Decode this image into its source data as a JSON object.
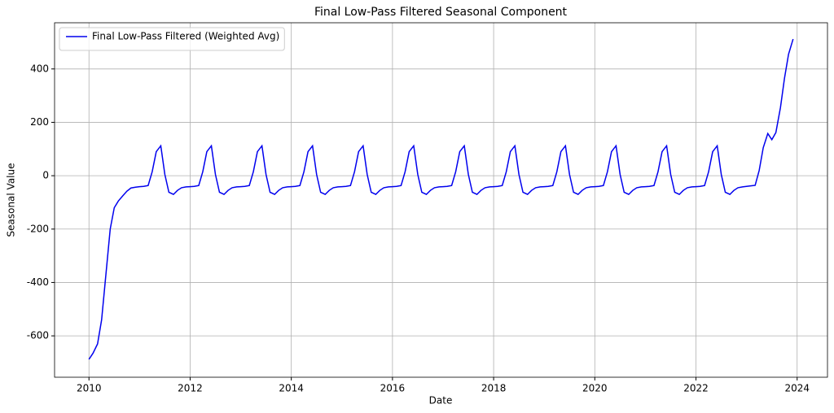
{
  "chart_data": {
    "type": "line",
    "title": "Final Low-Pass Filtered Seasonal Component",
    "x_label": "Date",
    "y_label": "Seasonal Value",
    "x": [
      2010,
      2010.08,
      2010.17,
      2010.25,
      2010.33,
      2010.42,
      2010.5,
      2010.58,
      2010.67,
      2010.75,
      2010.83,
      2010.92,
      2011,
      2011.08,
      2011.17,
      2011.25,
      2011.33,
      2011.42,
      2011.5,
      2011.58,
      2011.67,
      2011.75,
      2011.83,
      2011.92,
      2012,
      2012.08,
      2012.17,
      2012.25,
      2012.33,
      2012.42,
      2012.5,
      2012.58,
      2012.67,
      2012.75,
      2012.83,
      2012.92,
      2013,
      2013.08,
      2013.17,
      2013.25,
      2013.33,
      2013.42,
      2013.5,
      2013.58,
      2013.67,
      2013.75,
      2013.83,
      2013.92,
      2014,
      2014.08,
      2014.17,
      2014.25,
      2014.33,
      2014.42,
      2014.5,
      2014.58,
      2014.67,
      2014.75,
      2014.83,
      2014.92,
      2015,
      2015.08,
      2015.17,
      2015.25,
      2015.33,
      2015.42,
      2015.5,
      2015.58,
      2015.67,
      2015.75,
      2015.83,
      2015.92,
      2016,
      2016.08,
      2016.17,
      2016.25,
      2016.33,
      2016.42,
      2016.5,
      2016.58,
      2016.67,
      2016.75,
      2016.83,
      2016.92,
      2017,
      2017.08,
      2017.17,
      2017.25,
      2017.33,
      2017.42,
      2017.5,
      2017.58,
      2017.67,
      2017.75,
      2017.83,
      2017.92,
      2018,
      2018.08,
      2018.17,
      2018.25,
      2018.33,
      2018.42,
      2018.5,
      2018.58,
      2018.67,
      2018.75,
      2018.83,
      2018.92,
      2019,
      2019.08,
      2019.17,
      2019.25,
      2019.33,
      2019.42,
      2019.5,
      2019.58,
      2019.67,
      2019.75,
      2019.83,
      2019.92,
      2020,
      2020.08,
      2020.17,
      2020.25,
      2020.33,
      2020.42,
      2020.5,
      2020.58,
      2020.67,
      2020.75,
      2020.83,
      2020.92,
      2021,
      2021.08,
      2021.17,
      2021.25,
      2021.33,
      2021.42,
      2021.5,
      2021.58,
      2021.67,
      2021.75,
      2021.83,
      2021.92,
      2022,
      2022.08,
      2022.17,
      2022.25,
      2022.33,
      2022.42,
      2022.5,
      2022.58,
      2022.67,
      2022.75,
      2022.83,
      2022.92,
      2023,
      2023.08,
      2023.17,
      2023.25,
      2023.33,
      2023.42,
      2023.5,
      2023.58,
      2023.67,
      2023.75,
      2023.83,
      2023.92
    ],
    "series": [
      {
        "name": "Final Low-Pass Filtered (Weighted Avg)",
        "color": "#0000ee",
        "values": [
          -688,
          -665,
          -630,
          -540,
          -380,
          -200,
          -120,
          -95,
          -75,
          -58,
          -46,
          -43,
          -41,
          -40,
          -37,
          15,
          90,
          112,
          5,
          -62,
          -70,
          -55,
          -45,
          -42,
          -41,
          -40,
          -37,
          15,
          90,
          112,
          5,
          -62,
          -70,
          -55,
          -45,
          -42,
          -41,
          -40,
          -37,
          15,
          90,
          112,
          5,
          -62,
          -70,
          -55,
          -45,
          -42,
          -41,
          -40,
          -37,
          15,
          90,
          112,
          5,
          -62,
          -70,
          -55,
          -45,
          -42,
          -41,
          -40,
          -37,
          15,
          90,
          112,
          5,
          -62,
          -70,
          -55,
          -45,
          -42,
          -41,
          -40,
          -37,
          15,
          90,
          112,
          5,
          -62,
          -70,
          -55,
          -45,
          -42,
          -41,
          -40,
          -37,
          15,
          90,
          112,
          5,
          -62,
          -70,
          -55,
          -45,
          -42,
          -41,
          -40,
          -37,
          15,
          90,
          112,
          5,
          -62,
          -70,
          -55,
          -45,
          -42,
          -41,
          -40,
          -37,
          15,
          90,
          112,
          5,
          -62,
          -70,
          -55,
          -45,
          -42,
          -41,
          -40,
          -37,
          15,
          90,
          112,
          5,
          -62,
          -70,
          -55,
          -45,
          -42,
          -41,
          -40,
          -37,
          15,
          90,
          112,
          5,
          -62,
          -70,
          -55,
          -45,
          -42,
          -41,
          -40,
          -37,
          15,
          90,
          112,
          5,
          -62,
          -70,
          -55,
          -45,
          -42,
          -40,
          -38,
          -36,
          20,
          105,
          158,
          135,
          162,
          255,
          365,
          455,
          512
        ]
      }
    ],
    "xlim": [
      2009.32,
      2024.6
    ],
    "xticks": [
      2010,
      2012,
      2014,
      2016,
      2018,
      2020,
      2022,
      2024
    ],
    "ylim": [
      -755,
      573
    ],
    "yticks": [
      -600,
      -400,
      -200,
      0,
      200,
      400
    ],
    "grid": true,
    "legend": "upper left"
  }
}
